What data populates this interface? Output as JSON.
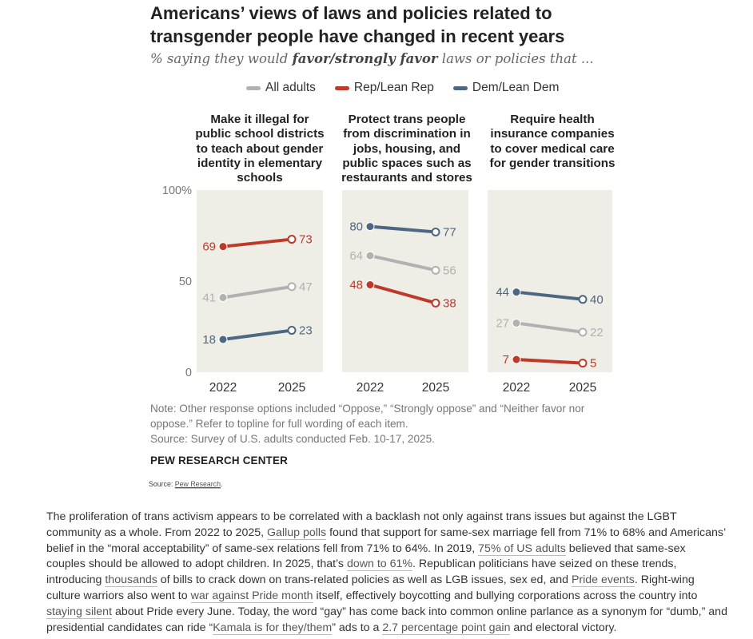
{
  "header": {
    "title": "Americans’ views of laws and policies related to transgender people have changed in recent years",
    "subtitle_pre": "% saying they would ",
    "subtitle_em": "favor/strongly favor",
    "subtitle_post": " laws or policies that ..."
  },
  "colors": {
    "all": "#b1b1b1",
    "rep": "#bc3a2a",
    "dem": "#4d6782",
    "panel_bg": "#efeee6"
  },
  "chart_data": {
    "type": "line",
    "y_ticks": [
      "100%",
      "50",
      "0"
    ],
    "ylim": [
      0,
      100
    ],
    "legend": [
      "All adults",
      "Rep/Lean Rep",
      "Dem/Lean Dem"
    ],
    "panels": [
      {
        "title": "Make it illegal for public school districts to teach about gender identity in elementary schools",
        "x": [
          "2022",
          "2025"
        ],
        "series": [
          {
            "name": "All adults",
            "values": [
              41,
              47
            ]
          },
          {
            "name": "Rep/Lean Rep",
            "values": [
              69,
              73
            ]
          },
          {
            "name": "Dem/Lean Dem",
            "values": [
              18,
              23
            ]
          }
        ]
      },
      {
        "title": "Protect trans people from discrimination in jobs, housing, and public spaces such as restaurants and stores",
        "x": [
          "2022",
          "2025"
        ],
        "series": [
          {
            "name": "All adults",
            "values": [
              64,
              56
            ]
          },
          {
            "name": "Rep/Lean Rep",
            "values": [
              48,
              38
            ]
          },
          {
            "name": "Dem/Lean Dem",
            "values": [
              80,
              77
            ]
          }
        ]
      },
      {
        "title": "Require health insurance companies to cover medical care for gender transitions",
        "x": [
          "2022",
          "2025"
        ],
        "series": [
          {
            "name": "All adults",
            "values": [
              27,
              22
            ]
          },
          {
            "name": "Rep/Lean Rep",
            "values": [
              7,
              5
            ]
          },
          {
            "name": "Dem/Lean Dem",
            "values": [
              44,
              40
            ]
          }
        ]
      }
    ]
  },
  "footer": {
    "note": "Note: Other response options included “Oppose,” “Strongly oppose” and “Neither favor nor oppose.” Refer to topline for full wording of each item.",
    "source": "Source: Survey of U.S. adults conducted Feb. 10-17, 2025.",
    "brand": "PEW RESEARCH CENTER"
  },
  "caption": {
    "prefix": "Source: ",
    "link": "Pew Research",
    "suffix": "."
  },
  "article": {
    "p1": "The proliferation of trans activism appears to be correlated with a backlash not only against trans issues but against the LGBT community as a whole. From 2022 to 2025, ",
    "l1": "Gallup polls",
    "p2": " found that support for same-sex marriage fell from 71% to 68% and Americans’ belief in the “moral acceptability” of same-sex relations fell from 71% to 64%. In 2019, ",
    "l2": "75% of US adults",
    "p3": " believed that same-sex couples should be allowed to adopt children. In 2025, that’s ",
    "l3": "down to 61%",
    "p4": ". Republican politicians have seized on these trends, introducing ",
    "l4": "thousands",
    "p5": " of bills to crack down on trans-related policies as well as LGB issues, sex ed, and ",
    "l5": "Pride events",
    "p6": ". Right-wing culture warriors also went to ",
    "l6": "war against Pride month",
    "p7": " itself, effectively boycotting and bullying corporations across the country into ",
    "l7": "staying silent",
    "p8": " about Pride every June. Today, the word “gay” has come back into common online parlance as a synonym for “dumb,” and presidential candidates can ride “",
    "l8": "Kamala is for they/them",
    "p9": "” ads to a ",
    "l9": "2.7 percentage point gain",
    "p10": " and electoral victory."
  }
}
